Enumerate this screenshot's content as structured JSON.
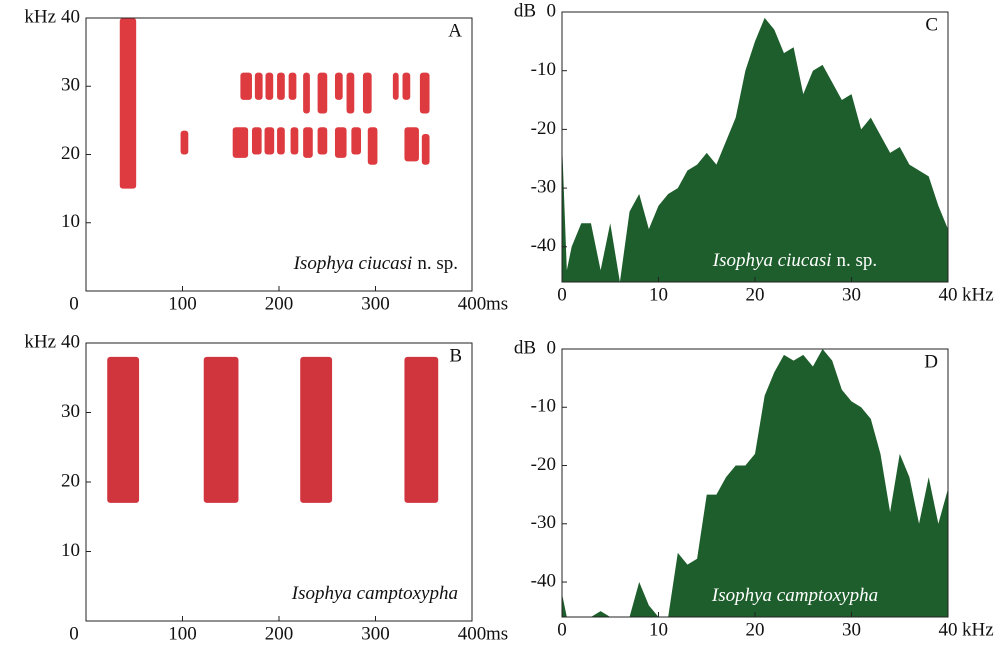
{
  "chart_data": [
    {
      "type": "spectrogram",
      "panel": "A",
      "x_label": "ms",
      "y_label": "kHz",
      "xlim": [
        0,
        400
      ],
      "ylim": [
        0,
        40
      ],
      "xticks": [
        0,
        100,
        200,
        300,
        400
      ],
      "yticks": [
        10,
        20,
        30,
        40
      ],
      "color": "#d7191f",
      "species_label": "Isophya ciucasi",
      "species_note": "n. sp.",
      "segments": [
        [
          35,
          52,
          15,
          40
        ],
        [
          98,
          106,
          20,
          23.5
        ],
        [
          160,
          172,
          28,
          32
        ],
        [
          175,
          183,
          28,
          32
        ],
        [
          186,
          194,
          28,
          32
        ],
        [
          198,
          206,
          28,
          32
        ],
        [
          210,
          218,
          28,
          32
        ],
        [
          225,
          232,
          26,
          32
        ],
        [
          240,
          250,
          26,
          32
        ],
        [
          258,
          266,
          28,
          32
        ],
        [
          270,
          278,
          26,
          32
        ],
        [
          287,
          296,
          26,
          32
        ],
        [
          318,
          324,
          28,
          32
        ],
        [
          328,
          336,
          28,
          32
        ],
        [
          346,
          356,
          26,
          32
        ],
        [
          152,
          168,
          19.5,
          24
        ],
        [
          172,
          182,
          20,
          24
        ],
        [
          185,
          195,
          20,
          24
        ],
        [
          198,
          206,
          20,
          24
        ],
        [
          212,
          220,
          20,
          24
        ],
        [
          225,
          235,
          19.5,
          24
        ],
        [
          240,
          250,
          20,
          24
        ],
        [
          258,
          270,
          19.5,
          24
        ],
        [
          275,
          285,
          20,
          24
        ],
        [
          292,
          302,
          18.5,
          24
        ],
        [
          330,
          345,
          19,
          24
        ],
        [
          348,
          356,
          18.5,
          23
        ]
      ]
    },
    {
      "type": "spectrogram",
      "panel": "B",
      "x_label": "ms",
      "y_label": "kHz",
      "xlim": [
        0,
        400
      ],
      "ylim": [
        0,
        40
      ],
      "xticks": [
        0,
        100,
        200,
        300,
        400
      ],
      "yticks": [
        10,
        20,
        30,
        40
      ],
      "color": "#c8101a",
      "species_label": "Isophya camptoxypha",
      "segments": [
        [
          22,
          55,
          17,
          38
        ],
        [
          122,
          158,
          17,
          38
        ],
        [
          222,
          255,
          17,
          38
        ],
        [
          330,
          365,
          17,
          38
        ]
      ]
    },
    {
      "type": "area",
      "panel": "C",
      "x_label": "kHz",
      "y_label": "dB",
      "xlim": [
        0,
        40
      ],
      "ylim": [
        -46,
        0
      ],
      "xticks": [
        0,
        10,
        20,
        30,
        40
      ],
      "yticks": [
        0,
        -10,
        -20,
        -30,
        -40
      ],
      "color": "#1e5e2c",
      "species_label": "Isophya ciucasi",
      "species_note": "n. sp.",
      "x": [
        0,
        0.5,
        1,
        2,
        3,
        4,
        5,
        6,
        7,
        8,
        9,
        10,
        11,
        12,
        13,
        14,
        15,
        16,
        17,
        18,
        19,
        20,
        21,
        22,
        23,
        24,
        25,
        26,
        27,
        28,
        29,
        30,
        31,
        32,
        33,
        34,
        35,
        36,
        37,
        38,
        39,
        40
      ],
      "values": [
        -22,
        -44,
        -40,
        -36,
        -36,
        -44,
        -36,
        -46,
        -34,
        -31,
        -37,
        -33,
        -31,
        -30,
        -27,
        -26,
        -24,
        -26,
        -22,
        -18,
        -10,
        -5,
        -1,
        -3,
        -7,
        -6,
        -14,
        -10,
        -9,
        -12,
        -15,
        -14,
        -20,
        -18,
        -21,
        -24,
        -23,
        -26,
        -27,
        -28,
        -33,
        -37
      ]
    },
    {
      "type": "area",
      "panel": "D",
      "x_label": "kHz",
      "y_label": "dB",
      "xlim": [
        0,
        40
      ],
      "ylim": [
        -46,
        0
      ],
      "xticks": [
        0,
        10,
        20,
        30,
        40
      ],
      "yticks": [
        0,
        -10,
        -20,
        -30,
        -40
      ],
      "color": "#1e5e2c",
      "species_label": "Isophya camptoxypha",
      "x": [
        0,
        0.5,
        1,
        2,
        3,
        4,
        5,
        6,
        7,
        8,
        9,
        10,
        11,
        12,
        13,
        14,
        15,
        16,
        17,
        18,
        19,
        20,
        21,
        22,
        23,
        24,
        25,
        26,
        27,
        28,
        29,
        30,
        31,
        32,
        33,
        34,
        35,
        36,
        37,
        38,
        39,
        40
      ],
      "values": [
        -42,
        -46,
        -46,
        -46,
        -46,
        -45,
        -46,
        -46,
        -46,
        -40,
        -44,
        -46,
        -46,
        -35,
        -37,
        -36,
        -25,
        -25,
        -22,
        -20,
        -20,
        -18,
        -8,
        -4,
        -1,
        -2,
        -1,
        -3,
        0,
        -2,
        -7,
        -9,
        -10,
        -12,
        -18,
        -28,
        -18,
        -22,
        -30,
        -22,
        -30,
        -24
      ]
    }
  ]
}
